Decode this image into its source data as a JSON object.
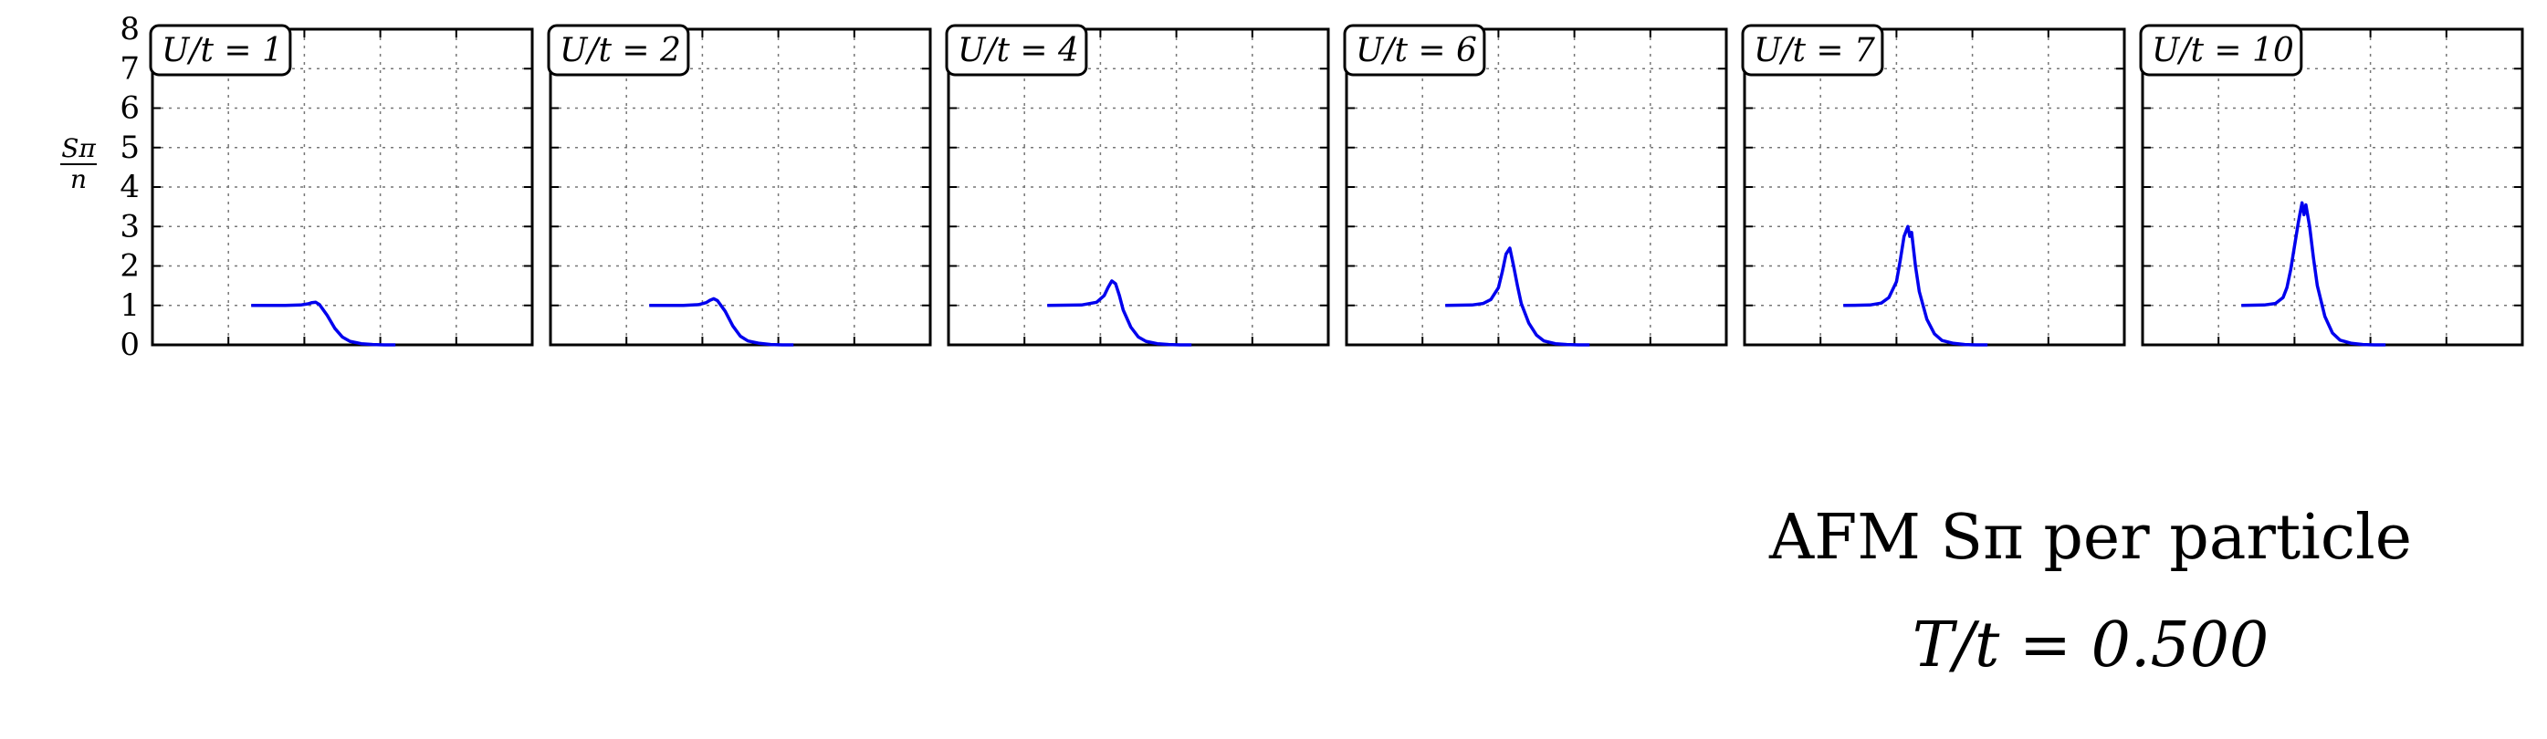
{
  "figure": {
    "title": "AFM Sπ per particle",
    "subtitle": "T/t = 0.500"
  },
  "chart_data": {
    "type": "line",
    "ylabel_num": "Sπ",
    "ylabel_den": "n",
    "ylim": [
      0,
      8
    ],
    "yticks": [
      "0",
      "1",
      "2",
      "3",
      "4",
      "5",
      "6",
      "7",
      "8"
    ],
    "xlim": [
      0,
      1
    ],
    "grid": true,
    "line_color": "#0000ee",
    "panels": [
      {
        "label": "U/t = 1",
        "series": [
          {
            "x": [
              0.26,
              0.35,
              0.39,
              0.41,
              0.42,
              0.43,
              0.44,
              0.46,
              0.48,
              0.5,
              0.52,
              0.55,
              0.58,
              0.61,
              0.64
            ],
            "values": [
              1.0,
              1.0,
              1.01,
              1.04,
              1.07,
              1.08,
              1.02,
              0.75,
              0.42,
              0.2,
              0.09,
              0.03,
              0.01,
              0.0,
              0.0
            ]
          }
        ]
      },
      {
        "label": "U/t = 2",
        "series": [
          {
            "x": [
              0.26,
              0.35,
              0.39,
              0.41,
              0.42,
              0.43,
              0.44,
              0.46,
              0.48,
              0.5,
              0.52,
              0.55,
              0.58,
              0.61,
              0.64
            ],
            "values": [
              1.0,
              1.0,
              1.02,
              1.07,
              1.13,
              1.17,
              1.12,
              0.85,
              0.48,
              0.22,
              0.1,
              0.04,
              0.01,
              0.0,
              0.0
            ]
          }
        ]
      },
      {
        "label": "U/t = 4",
        "series": [
          {
            "x": [
              0.26,
              0.35,
              0.39,
              0.41,
              0.42,
              0.43,
              0.44,
              0.45,
              0.46,
              0.48,
              0.5,
              0.52,
              0.55,
              0.58,
              0.61,
              0.64
            ],
            "values": [
              1.0,
              1.01,
              1.08,
              1.25,
              1.45,
              1.62,
              1.55,
              1.25,
              0.88,
              0.45,
              0.2,
              0.09,
              0.03,
              0.01,
              0.0,
              0.0
            ]
          }
        ]
      },
      {
        "label": "U/t = 6",
        "series": [
          {
            "x": [
              0.26,
              0.33,
              0.36,
              0.38,
              0.4,
              0.41,
              0.42,
              0.43,
              0.44,
              0.45,
              0.46,
              0.48,
              0.5,
              0.52,
              0.55,
              0.58,
              0.61,
              0.64
            ],
            "values": [
              1.0,
              1.01,
              1.05,
              1.15,
              1.45,
              1.85,
              2.3,
              2.45,
              2.0,
              1.5,
              1.05,
              0.55,
              0.25,
              0.1,
              0.03,
              0.01,
              0.0,
              0.0
            ]
          }
        ]
      },
      {
        "label": "U/t = 7",
        "series": [
          {
            "x": [
              0.26,
              0.33,
              0.36,
              0.38,
              0.4,
              0.41,
              0.42,
              0.43,
              0.435,
              0.44,
              0.45,
              0.46,
              0.48,
              0.5,
              0.52,
              0.55,
              0.58,
              0.61,
              0.64
            ],
            "values": [
              1.0,
              1.01,
              1.06,
              1.2,
              1.6,
              2.15,
              2.75,
              3.0,
              2.75,
              2.85,
              2.0,
              1.35,
              0.65,
              0.28,
              0.11,
              0.04,
              0.01,
              0.0,
              0.0
            ]
          }
        ]
      },
      {
        "label": "U/t = 10",
        "series": [
          {
            "x": [
              0.26,
              0.32,
              0.35,
              0.37,
              0.38,
              0.39,
              0.4,
              0.41,
              0.415,
              0.42,
              0.425,
              0.43,
              0.44,
              0.45,
              0.46,
              0.48,
              0.5,
              0.52,
              0.55,
              0.58,
              0.61,
              0.64
            ],
            "values": [
              1.0,
              1.01,
              1.05,
              1.2,
              1.45,
              1.9,
              2.5,
              3.1,
              3.35,
              3.6,
              3.3,
              3.55,
              3.0,
              2.2,
              1.5,
              0.72,
              0.3,
              0.12,
              0.04,
              0.01,
              0.0,
              0.0
            ]
          }
        ]
      }
    ]
  }
}
